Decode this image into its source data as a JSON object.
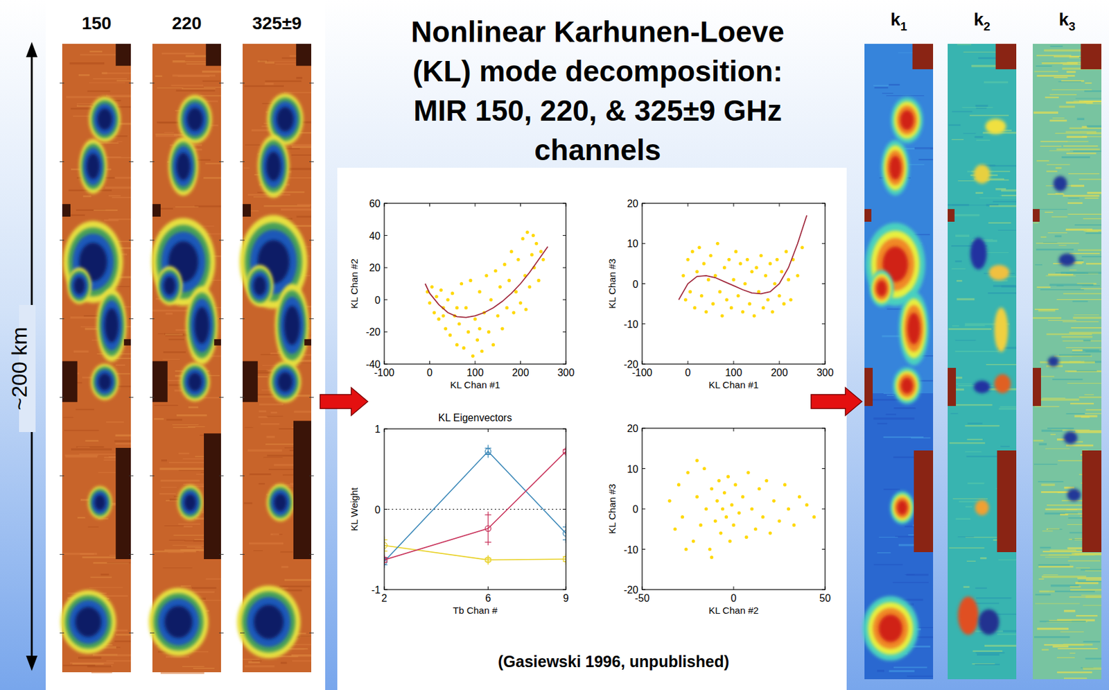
{
  "header": {
    "title_lines": [
      "Nonlinear Karhunen-Loeve",
      "(KL) mode decomposition:",
      "MIR 150, 220, & 325±9 GHz",
      "channels"
    ]
  },
  "left_images": {
    "labels": [
      "150",
      "220",
      "325±9"
    ],
    "scale_label": "~200 km"
  },
  "right_images": {
    "labels": [
      {
        "base": "k",
        "sub": "1"
      },
      {
        "base": "k",
        "sub": "2"
      },
      {
        "base": "k",
        "sub": "3"
      }
    ]
  },
  "credit": "(Gasiewski 1996, unpublished)",
  "chart_data": [
    {
      "type": "scatter",
      "xlabel": "KL Chan #1",
      "ylabel": "KL Chan #2",
      "xlim": [
        -100,
        300
      ],
      "ylim": [
        -40,
        60
      ],
      "xticks": [
        -100,
        0,
        100,
        200,
        300
      ],
      "yticks": [
        -40,
        -20,
        0,
        20,
        40,
        60
      ],
      "grid": false,
      "series": [
        {
          "type": "scatter",
          "color": "#ffd800",
          "marker": "dot",
          "x": [
            -5,
            0,
            5,
            10,
            15,
            20,
            25,
            30,
            35,
            40,
            45,
            50,
            55,
            60,
            65,
            70,
            75,
            80,
            85,
            90,
            95,
            100,
            105,
            110,
            115,
            120,
            125,
            130,
            135,
            140,
            145,
            150,
            155,
            160,
            165,
            170,
            175,
            180,
            185,
            190,
            195,
            200,
            205,
            210,
            215,
            220,
            225,
            230,
            235,
            240,
            245,
            250,
            228,
            212,
            110,
            60,
            30
          ],
          "values": [
            5,
            -2,
            8,
            -8,
            2,
            -12,
            6,
            -5,
            -18,
            0,
            -22,
            4,
            -10,
            -28,
            -15,
            10,
            -30,
            -5,
            -20,
            12,
            -35,
            -12,
            -25,
            5,
            -32,
            -8,
            15,
            -20,
            0,
            -28,
            18,
            -10,
            8,
            -18,
            22,
            -5,
            12,
            30,
            -8,
            5,
            25,
            -2,
            38,
            15,
            42,
            8,
            28,
            20,
            35,
            12,
            30,
            25,
            40,
            -6,
            -18,
            -5,
            -10
          ]
        },
        {
          "type": "line",
          "color": "#a0283c",
          "line_style": "solid",
          "x": [
            -10,
            0,
            20,
            40,
            60,
            80,
            100,
            120,
            140,
            160,
            180,
            200,
            220,
            240,
            260
          ],
          "values": [
            10,
            4,
            -3,
            -8,
            -10.5,
            -11,
            -10,
            -8,
            -5,
            -1,
            4,
            10,
            17,
            25,
            33
          ]
        }
      ]
    },
    {
      "type": "scatter",
      "xlabel": "KL Chan #1",
      "ylabel": "KL Chan #3",
      "xlim": [
        -100,
        300
      ],
      "ylim": [
        -20,
        20
      ],
      "xticks": [
        -100,
        0,
        100,
        200,
        300
      ],
      "yticks": [
        -20,
        -10,
        0,
        10,
        20
      ],
      "grid": false,
      "series": [
        {
          "type": "scatter",
          "color": "#ffd800",
          "marker": "dot",
          "x": [
            -10,
            -5,
            0,
            5,
            10,
            15,
            20,
            25,
            30,
            35,
            40,
            45,
            50,
            55,
            60,
            65,
            70,
            75,
            80,
            85,
            90,
            95,
            100,
            105,
            110,
            115,
            120,
            125,
            130,
            135,
            140,
            145,
            150,
            155,
            160,
            165,
            170,
            175,
            180,
            185,
            190,
            195,
            200,
            205,
            210,
            215,
            220,
            225,
            230,
            240,
            250
          ],
          "values": [
            2,
            -4,
            6,
            -2,
            8,
            -6,
            3,
            9,
            -3,
            5,
            -7,
            1,
            7,
            -5,
            2,
            10,
            -2,
            -8,
            4,
            -4,
            6,
            -6,
            1,
            8,
            -3,
            5,
            -7,
            0,
            6,
            -5,
            3,
            -8,
            4,
            -2,
            7,
            -6,
            2,
            -4,
            5,
            -7,
            0,
            6,
            -3,
            3,
            -5,
            8,
            1,
            -4,
            6,
            2,
            9
          ]
        },
        {
          "type": "line",
          "color": "#a0283c",
          "line_style": "solid",
          "x": [
            -20,
            -10,
            0,
            20,
            40,
            60,
            80,
            100,
            120,
            140,
            160,
            180,
            200,
            220,
            240,
            260
          ],
          "values": [
            -4,
            -2,
            0,
            1.8,
            2,
            1.5,
            0.5,
            -0.5,
            -1.5,
            -2.3,
            -2.5,
            -2,
            0,
            4,
            10,
            17
          ]
        }
      ]
    },
    {
      "type": "line",
      "title": "KL Eigenvectors",
      "xlabel": "Tb Chan #",
      "ylabel": "KL Weight",
      "xlim": [
        2,
        9
      ],
      "ylim": [
        -1,
        1
      ],
      "xticks": [
        2,
        6,
        9
      ],
      "yticks": [
        -1,
        0,
        1
      ],
      "grid": false,
      "reference_lines": [
        {
          "value": 0,
          "line_style": "dotted"
        }
      ],
      "series": [
        {
          "type": "line",
          "color": "#e8d020",
          "marker": "circle",
          "x": [
            2,
            6,
            9
          ],
          "values": [
            -0.45,
            -0.63,
            -0.62
          ],
          "errors": [
            0.07,
            0.02,
            0.03
          ]
        },
        {
          "type": "line",
          "color": "#3b88b8",
          "marker": "circle",
          "x": [
            2,
            6,
            9
          ],
          "values": [
            -0.65,
            0.72,
            -0.3
          ],
          "errors": [
            0.04,
            0.04,
            0.08
          ]
        },
        {
          "type": "line",
          "color": "#c8325a",
          "marker": "circle",
          "x": [
            2,
            6,
            9
          ],
          "values": [
            -0.63,
            -0.24,
            0.72
          ],
          "errors": [
            0.03,
            0.17,
            0.02
          ]
        }
      ]
    },
    {
      "type": "scatter",
      "xlabel": "KL Chan #2",
      "ylabel": "KL Chan #3",
      "xlim": [
        -50,
        50
      ],
      "ylim": [
        -20,
        20
      ],
      "xticks": [
        -50,
        0,
        50
      ],
      "yticks": [
        -20,
        -10,
        0,
        10,
        20
      ],
      "grid": false,
      "series": [
        {
          "type": "scatter",
          "color": "#ffd800",
          "marker": "dot",
          "x": [
            -35,
            -32,
            -30,
            -28,
            -25,
            -22,
            -20,
            -18,
            -16,
            -15,
            -13,
            -12,
            -10,
            -9,
            -8,
            -7,
            -6,
            -5,
            -4,
            -3,
            -2,
            -1,
            0,
            1,
            3,
            5,
            7,
            8,
            10,
            12,
            14,
            16,
            18,
            20,
            22,
            25,
            28,
            30,
            33,
            36,
            40,
            44,
            -12,
            -20,
            -26
          ],
          "values": [
            2,
            -5,
            6,
            -2,
            9,
            -8,
            3,
            -4,
            10,
            0,
            -10,
            5,
            -3,
            2,
            7,
            -6,
            0,
            4,
            -2,
            8,
            -8,
            1,
            -4,
            6,
            -1,
            3,
            -7,
            9,
            0,
            -5,
            5,
            -2,
            7,
            -6,
            2,
            -3,
            6,
            0,
            -4,
            3,
            1,
            -2,
            -12,
            12,
            -10
          ]
        }
      ]
    }
  ]
}
